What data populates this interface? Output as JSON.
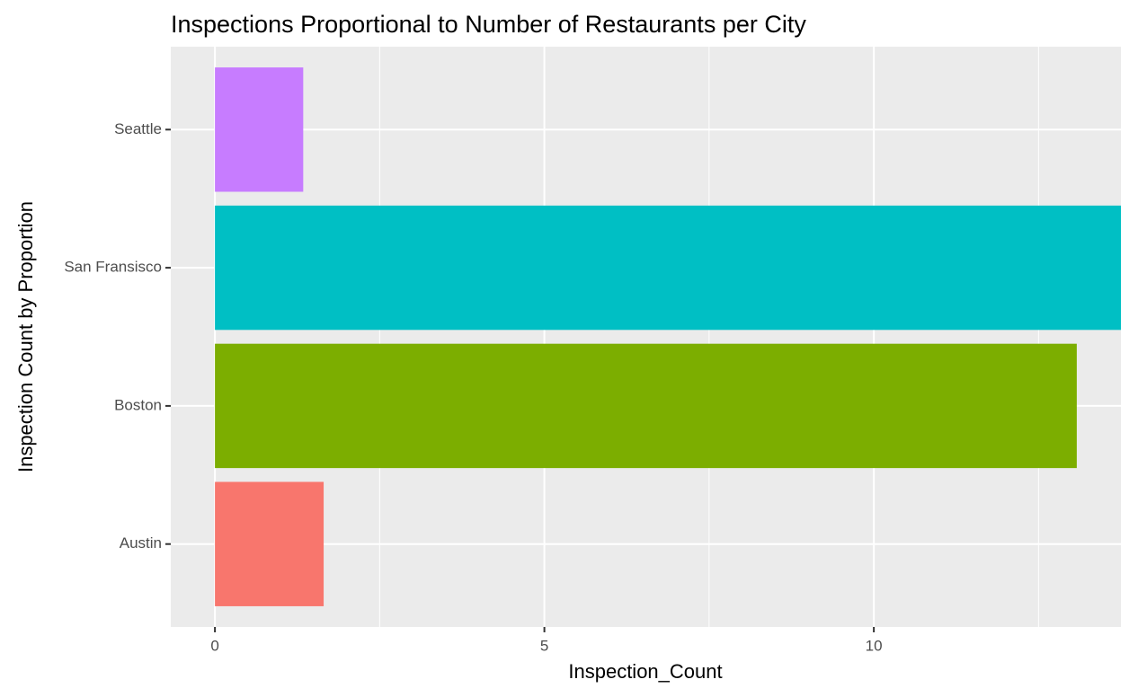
{
  "chart_data": {
    "type": "barh",
    "title": "Inspections Proportional to Number of Restaurants per City",
    "x_label": "Inspection_Count",
    "y_label": "Inspection Count by Proportion",
    "categories": [
      "Austin",
      "Boston",
      "San Fransisco",
      "Seattle"
    ],
    "values": [
      1.65,
      13.08,
      13.75,
      1.34
    ],
    "colors": [
      "#F8766D",
      "#7CAE00",
      "#00BFC4",
      "#C77CFF"
    ],
    "xlim": [
      -0.67,
      13.75
    ],
    "xticks": [
      0,
      5,
      10
    ],
    "x_minor_ticks": [
      2.5,
      7.5,
      12.5
    ],
    "grid": true
  }
}
